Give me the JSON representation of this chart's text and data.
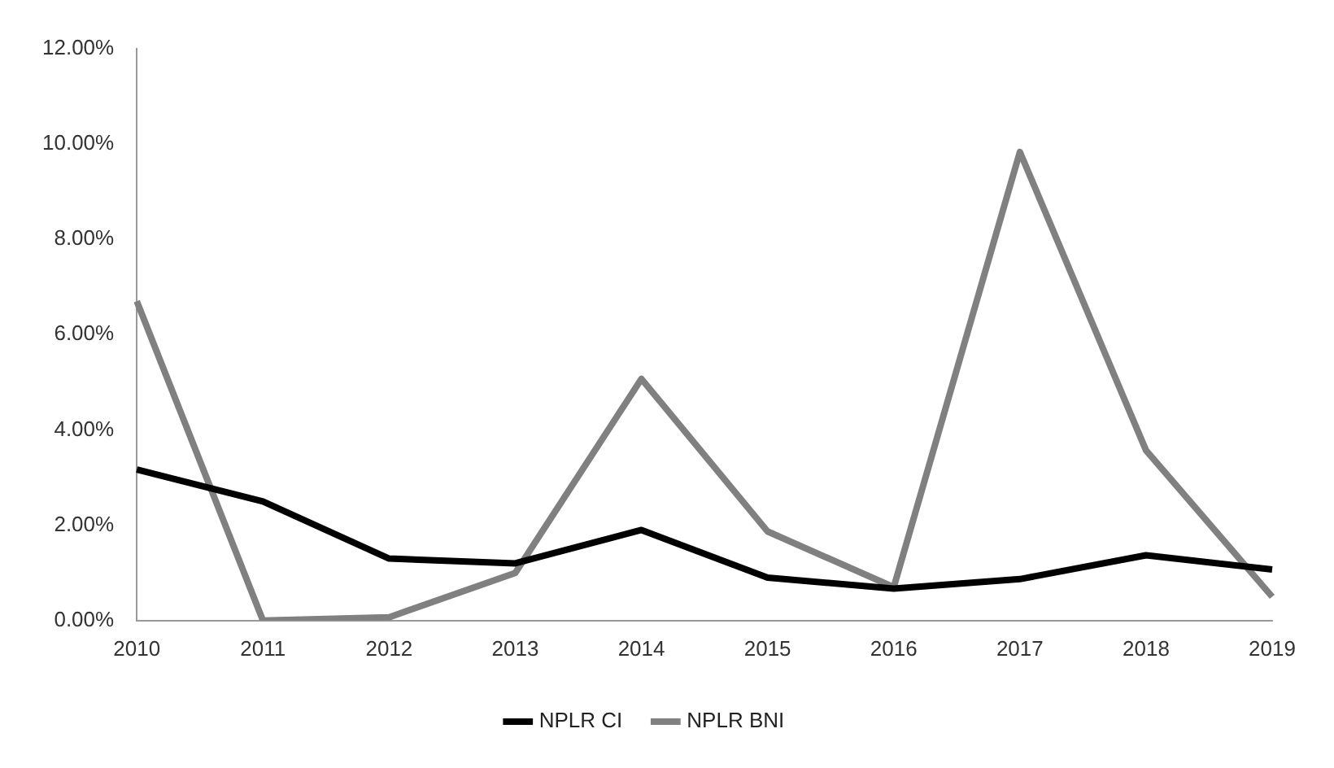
{
  "chart_data": {
    "type": "line",
    "categories": [
      "2010",
      "2011",
      "2012",
      "2013",
      "2014",
      "2015",
      "2016",
      "2017",
      "2018",
      "2019"
    ],
    "series": [
      {
        "name": "NPLR CI",
        "color": "#000000",
        "values": [
          3.17,
          2.5,
          1.3,
          1.2,
          1.9,
          0.9,
          0.67,
          0.87,
          1.37,
          1.07
        ]
      },
      {
        "name": "NPLR BNI",
        "color": "#808080",
        "values": [
          6.7,
          0,
          0.07,
          1.0,
          5.07,
          1.87,
          0.7,
          9.83,
          3.57,
          0.5
        ]
      }
    ],
    "ylim": [
      0,
      12
    ],
    "yticks": [
      {
        "value": 0,
        "label": "0.00%"
      },
      {
        "value": 2,
        "label": "2.00%"
      },
      {
        "value": 4,
        "label": "4.00%"
      },
      {
        "value": 6,
        "label": "6.00%"
      },
      {
        "value": 8,
        "label": "8.00%"
      },
      {
        "value": 10,
        "label": "10.00%"
      },
      {
        "value": 12,
        "label": "12.00%"
      }
    ],
    "grid": false,
    "legend": "bottom",
    "marker": "none",
    "line_style": "solid"
  }
}
